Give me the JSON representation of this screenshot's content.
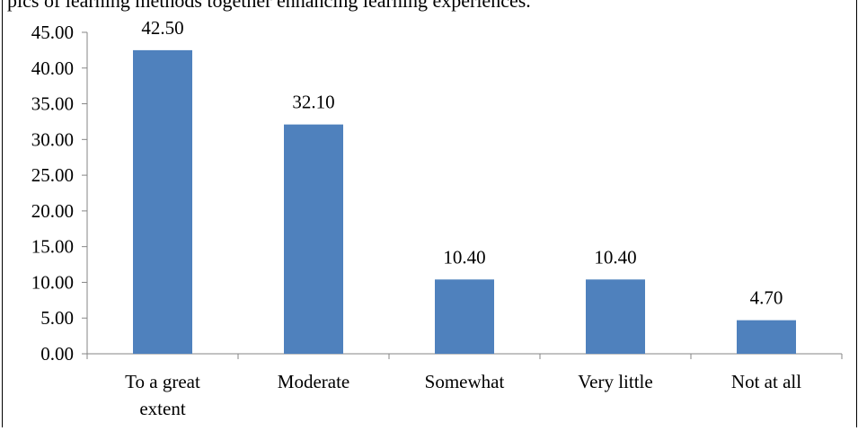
{
  "page": {
    "caption_fragment": "pics of learning methods together enhancing learning experiences."
  },
  "chart_data": {
    "type": "bar",
    "categories": [
      "To a great extent",
      "Moderate",
      "Somewhat",
      "Very little",
      "Not at all"
    ],
    "category_lines": [
      [
        "To a great",
        "extent"
      ],
      [
        "Moderate"
      ],
      [
        "Somewhat"
      ],
      [
        "Very little"
      ],
      [
        "Not at all"
      ]
    ],
    "values": [
      42.5,
      32.1,
      10.4,
      10.4,
      4.7
    ],
    "value_labels": [
      "42.50",
      "32.10",
      "10.40",
      "10.40",
      "4.70"
    ],
    "yticks": [
      "0.00",
      "5.00",
      "10.00",
      "15.00",
      "20.00",
      "25.00",
      "30.00",
      "35.00",
      "40.00",
      "45.00"
    ],
    "ylim": [
      0,
      45
    ],
    "ystep": 5,
    "bar_color": "#4f81bd",
    "grid": false,
    "legend": false
  }
}
